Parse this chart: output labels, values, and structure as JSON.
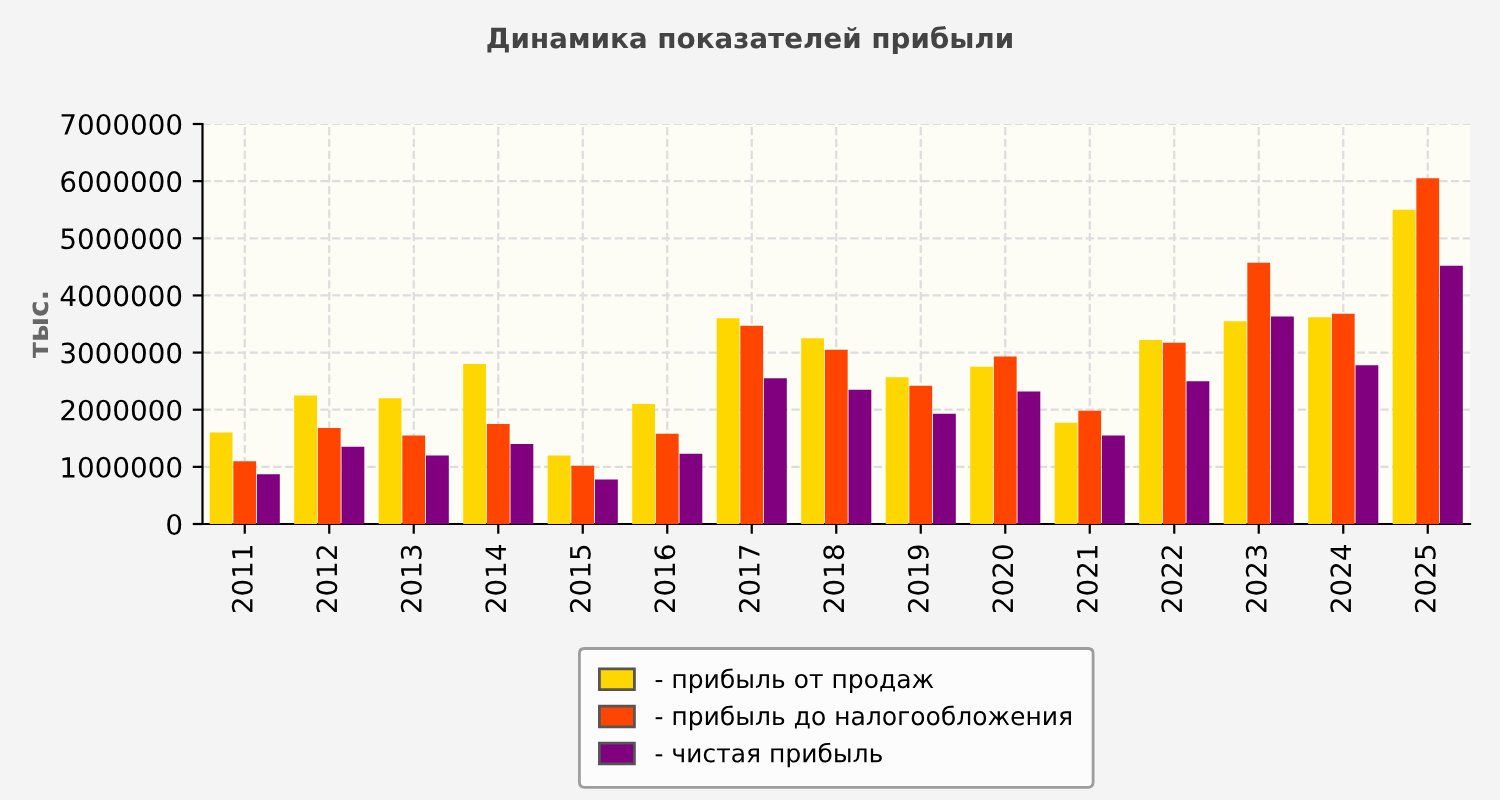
{
  "chart_data": {
    "type": "bar",
    "title": "Динамика показателей прибыли",
    "ylabel": "тыс.",
    "categories": [
      "2011",
      "2012",
      "2013",
      "2014",
      "2015",
      "2016",
      "2017",
      "2018",
      "2019",
      "2020",
      "2021",
      "2022",
      "2023",
      "2024",
      "2025"
    ],
    "series": [
      {
        "name": "- прибыль от продаж",
        "color": "#ffd700",
        "values": [
          1600000,
          2250000,
          2200000,
          2800000,
          1200000,
          2100000,
          3600000,
          3250000,
          2570000,
          2750000,
          1770000,
          3220000,
          3550000,
          3620000,
          5500000
        ]
      },
      {
        "name": "- прибыль до налогообложения",
        "color": "#ff4500",
        "values": [
          1100000,
          1680000,
          1550000,
          1750000,
          1020000,
          1580000,
          3470000,
          3050000,
          2420000,
          2930000,
          1980000,
          3170000,
          4570000,
          3680000,
          6050000
        ]
      },
      {
        "name": "- чистая прибыль",
        "color": "#800080",
        "values": [
          870000,
          1350000,
          1200000,
          1400000,
          780000,
          1230000,
          2550000,
          2350000,
          1930000,
          2320000,
          1550000,
          2500000,
          3630000,
          2780000,
          4520000
        ]
      }
    ],
    "ylim": [
      0,
      7000000
    ],
    "yticks": [
      0,
      1000000,
      2000000,
      3000000,
      4000000,
      5000000,
      6000000,
      7000000
    ],
    "grid": true,
    "legend": "bottom"
  }
}
